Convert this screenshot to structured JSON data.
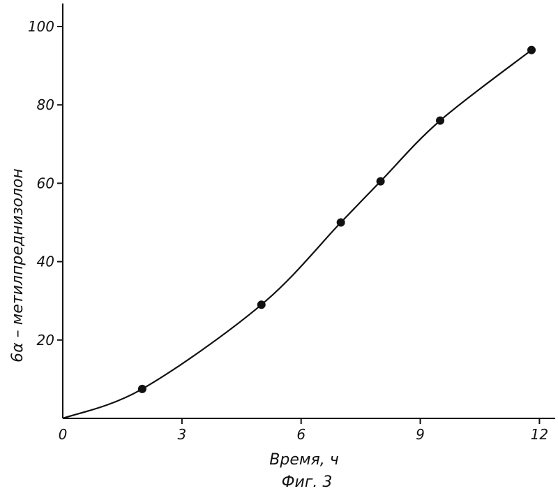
{
  "chart_data": {
    "type": "line",
    "xlabel": "Время, ч",
    "ylabel": "6α – метилпреднизолон",
    "caption": "Фиг. 3",
    "xlim": [
      0,
      12.4
    ],
    "ylim": [
      0,
      107
    ],
    "x_ticks": [
      0,
      3,
      6,
      9,
      12
    ],
    "x_tick_labels": [
      "0",
      "3",
      "6",
      "9",
      "12"
    ],
    "y_ticks": [
      20,
      40,
      60,
      80,
      100
    ],
    "y_tick_labels": [
      "20",
      "40",
      "60",
      "80",
      "100"
    ],
    "series": [
      {
        "x": [
          0,
          2,
          5,
          7,
          8,
          9.5,
          11.8
        ],
        "y": [
          0,
          7.5,
          29,
          50,
          60.5,
          76,
          94
        ]
      }
    ],
    "markers": true,
    "grid": false,
    "colors": {
      "ink": "#111111",
      "background": "#ffffff"
    }
  }
}
